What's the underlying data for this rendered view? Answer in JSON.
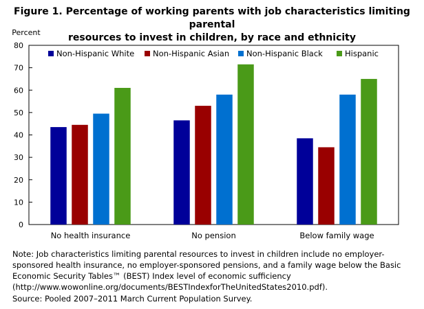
{
  "figure": {
    "title_line1": "Figure 1. Percentage of working parents with job characteristics limiting parental",
    "title_line2": "resources to invest in children, by race and ethnicity",
    "note_line1": "Note: Job characteristics limiting parental resources to invest in children include no employer-",
    "note_line2": "sponsored health insurance, no employer-sponsored pensions, and a family wage below the Basic",
    "note_line3": "Economic Security Tables™ (BEST) Index level of economic sufficiency",
    "note_line4": "(http://www.wowonline.org/documents/BESTIndexforTheUnitedStates2010.pdf).",
    "source": "Source: Pooled 2007–2011 March Current Population Survey."
  },
  "chart_data": {
    "type": "bar",
    "ylabel": "Percent",
    "ylim": [
      0,
      80
    ],
    "yticks": [
      0,
      10,
      20,
      30,
      40,
      50,
      60,
      70,
      80
    ],
    "legend_position": "top",
    "categories": [
      "No health insurance",
      "No pension",
      "Below family wage"
    ],
    "series": [
      {
        "name": "Non-Hispanic White",
        "color": "#000099",
        "values": [
          43.5,
          46.5,
          38.5
        ]
      },
      {
        "name": "Non-Hispanic Asian",
        "color": "#990000",
        "values": [
          44.5,
          53,
          34.5
        ]
      },
      {
        "name": "Non-Hispanic Black",
        "color": "#0070d0",
        "values": [
          49.5,
          58,
          58
        ]
      },
      {
        "name": "Hispanic",
        "color": "#4a9a18",
        "values": [
          61,
          71.5,
          65
        ]
      }
    ]
  }
}
